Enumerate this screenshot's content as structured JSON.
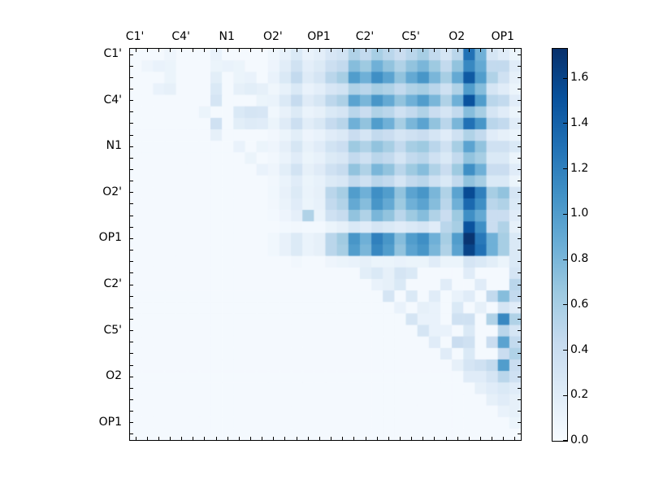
{
  "figure": {
    "background": "#ffffff",
    "text_color": "#000000"
  },
  "axis": {
    "labels": [
      "C1'",
      "C4'",
      "N1",
      "O2'",
      "OP1",
      "C2'",
      "C5'",
      "O2",
      "OP1"
    ],
    "label_cell_positions": [
      0,
      4,
      8,
      12,
      16,
      20,
      24,
      28,
      32
    ]
  },
  "colorbar": {
    "tick_labels": [
      "0.0",
      "0.2",
      "0.4",
      "0.6",
      "0.8",
      "1.0",
      "1.2",
      "1.4",
      "1.6"
    ],
    "tick_values": [
      0.0,
      0.2,
      0.4,
      0.6,
      0.8,
      1.0,
      1.2,
      1.4,
      1.6
    ],
    "vmin": 0.0,
    "vmax": 1.73
  },
  "chart_data": {
    "type": "heatmap",
    "title": "",
    "n": 34,
    "x_labels": [
      "C1'",
      "C4'",
      "N1",
      "O2'",
      "OP1",
      "C2'",
      "C5'",
      "O2",
      "OP1"
    ],
    "y_labels": [
      "C1'",
      "C4'",
      "N1",
      "O2'",
      "OP1",
      "C2'",
      "C5'",
      "O2",
      "OP1"
    ],
    "label_cell_positions": [
      0,
      4,
      8,
      12,
      16,
      20,
      24,
      28,
      32
    ],
    "colormap": "Blues",
    "colormap_anchors": [
      "#f7fbff",
      "#deebf7",
      "#c6dbef",
      "#9ecae1",
      "#6baed6",
      "#4292c6",
      "#2171b5",
      "#08519c",
      "#08306b"
    ],
    "vmin": 0.0,
    "vmax": 1.73,
    "grid": false,
    "legend_position": "right-colorbar",
    "matrix": [
      [
        0.03,
        0.03,
        0.03,
        0.08,
        0.03,
        0.03,
        0.03,
        0.12,
        0.03,
        0.03,
        0.03,
        0.03,
        0.07,
        0.14,
        0.25,
        0.12,
        0.17,
        0.28,
        0.33,
        0.55,
        0.45,
        0.6,
        0.5,
        0.4,
        0.5,
        0.6,
        0.45,
        0.3,
        0.5,
        1.3,
        0.85,
        0.3,
        0.2,
        0.1
      ],
      [
        0.03,
        0.08,
        0.12,
        0.1,
        0.03,
        0.03,
        0.03,
        0.1,
        0.12,
        0.1,
        0.03,
        0.03,
        0.09,
        0.19,
        0.34,
        0.17,
        0.23,
        0.38,
        0.45,
        0.75,
        0.65,
        0.85,
        0.7,
        0.55,
        0.7,
        0.8,
        0.65,
        0.45,
        0.7,
        1.15,
        0.9,
        0.45,
        0.45,
        0.2
      ],
      [
        0.03,
        0.03,
        0.03,
        0.1,
        0.03,
        0.03,
        0.03,
        0.18,
        0.03,
        0.1,
        0.12,
        0.03,
        0.12,
        0.25,
        0.45,
        0.22,
        0.3,
        0.5,
        0.6,
        1.0,
        0.85,
        1.1,
        0.95,
        0.7,
        0.9,
        1.05,
        0.8,
        0.6,
        0.9,
        1.45,
        1.0,
        0.55,
        0.35,
        0.15
      ],
      [
        0.03,
        0.03,
        0.12,
        0.15,
        0.03,
        0.03,
        0.03,
        0.25,
        0.03,
        0.15,
        0.18,
        0.15,
        0.07,
        0.14,
        0.25,
        0.12,
        0.17,
        0.28,
        0.33,
        0.55,
        0.5,
        0.6,
        0.55,
        0.45,
        0.55,
        0.6,
        0.5,
        0.35,
        0.55,
        1.0,
        0.75,
        0.3,
        0.2,
        0.1
      ],
      [
        0.03,
        0.03,
        0.03,
        0.03,
        0.03,
        0.03,
        0.03,
        0.3,
        0.03,
        0.03,
        0.03,
        0.1,
        0.11,
        0.24,
        0.43,
        0.21,
        0.29,
        0.48,
        0.57,
        0.95,
        0.8,
        1.05,
        0.9,
        0.7,
        0.85,
        1.0,
        0.8,
        0.55,
        0.85,
        1.5,
        1.0,
        0.5,
        0.45,
        0.2
      ],
      [
        0.03,
        0.03,
        0.03,
        0.03,
        0.03,
        0.03,
        0.1,
        0.03,
        0.03,
        0.25,
        0.3,
        0.28,
        0.06,
        0.13,
        0.23,
        0.11,
        0.15,
        0.25,
        0.3,
        0.5,
        0.4,
        0.55,
        0.5,
        0.35,
        0.45,
        0.55,
        0.4,
        0.3,
        0.45,
        0.75,
        0.6,
        0.3,
        0.2,
        0.1
      ],
      [
        0.03,
        0.03,
        0.03,
        0.03,
        0.03,
        0.03,
        0.03,
        0.35,
        0.03,
        0.18,
        0.22,
        0.2,
        0.1,
        0.21,
        0.38,
        0.19,
        0.26,
        0.43,
        0.51,
        0.85,
        0.7,
        1.0,
        0.85,
        0.6,
        0.8,
        0.95,
        0.7,
        0.5,
        0.8,
        1.3,
        1.05,
        0.5,
        0.45,
        0.2
      ],
      [
        0.03,
        0.03,
        0.03,
        0.03,
        0.03,
        0.03,
        0.03,
        0.15,
        0.03,
        0.03,
        0.03,
        0.03,
        0.05,
        0.1,
        0.18,
        0.09,
        0.12,
        0.2,
        0.24,
        0.4,
        0.3,
        0.45,
        0.4,
        0.3,
        0.35,
        0.4,
        0.3,
        0.2,
        0.35,
        0.55,
        0.45,
        0.2,
        0.15,
        0.1
      ],
      [
        0.03,
        0.03,
        0.03,
        0.03,
        0.03,
        0.03,
        0.03,
        0.03,
        0.03,
        0.12,
        0.03,
        0.1,
        0.08,
        0.16,
        0.29,
        0.14,
        0.2,
        0.33,
        0.39,
        0.65,
        0.55,
        0.7,
        0.6,
        0.45,
        0.6,
        0.65,
        0.5,
        0.35,
        0.6,
        0.95,
        0.7,
        0.35,
        0.35,
        0.25
      ],
      [
        0.03,
        0.03,
        0.03,
        0.03,
        0.03,
        0.03,
        0.03,
        0.03,
        0.03,
        0.03,
        0.1,
        0.03,
        0.05,
        0.11,
        0.2,
        0.1,
        0.14,
        0.23,
        0.27,
        0.45,
        0.35,
        0.5,
        0.45,
        0.3,
        0.45,
        0.5,
        0.35,
        0.25,
        0.45,
        0.7,
        0.6,
        0.25,
        0.25,
        0.1
      ],
      [
        0.03,
        0.03,
        0.03,
        0.03,
        0.03,
        0.03,
        0.03,
        0.03,
        0.03,
        0.03,
        0.03,
        0.12,
        0.08,
        0.18,
        0.32,
        0.15,
        0.21,
        0.35,
        0.42,
        0.7,
        0.55,
        0.8,
        0.7,
        0.5,
        0.65,
        0.75,
        0.55,
        0.4,
        0.65,
        1.1,
        0.85,
        0.4,
        0.4,
        0.2
      ],
      [
        0.03,
        0.03,
        0.03,
        0.03,
        0.03,
        0.03,
        0.03,
        0.03,
        0.03,
        0.03,
        0.03,
        0.03,
        0.05,
        0.11,
        0.2,
        0.1,
        0.14,
        0.23,
        0.27,
        0.45,
        0.35,
        0.5,
        0.45,
        0.3,
        0.45,
        0.5,
        0.35,
        0.25,
        0.45,
        0.7,
        0.6,
        0.25,
        0.25,
        0.1
      ],
      [
        0.03,
        0.03,
        0.03,
        0.03,
        0.03,
        0.03,
        0.03,
        0.03,
        0.03,
        0.03,
        0.03,
        0.03,
        0.06,
        0.13,
        0.23,
        0.11,
        0.15,
        0.5,
        0.6,
        1.0,
        0.85,
        1.1,
        1.0,
        0.7,
        0.95,
        1.05,
        0.8,
        0.55,
        0.95,
        1.55,
        1.2,
        0.6,
        0.7,
        0.3
      ],
      [
        0.03,
        0.03,
        0.03,
        0.03,
        0.03,
        0.03,
        0.03,
        0.03,
        0.03,
        0.03,
        0.03,
        0.03,
        0.05,
        0.11,
        0.2,
        0.1,
        0.14,
        0.45,
        0.54,
        0.9,
        0.75,
        1.05,
        0.9,
        0.65,
        0.85,
        0.95,
        0.75,
        0.5,
        0.85,
        1.35,
        1.1,
        0.5,
        0.55,
        0.25
      ],
      [
        0.03,
        0.03,
        0.03,
        0.03,
        0.03,
        0.03,
        0.03,
        0.03,
        0.03,
        0.03,
        0.03,
        0.03,
        0.04,
        0.09,
        0.16,
        0.55,
        0.11,
        0.35,
        0.42,
        0.7,
        0.55,
        0.8,
        0.7,
        0.5,
        0.65,
        0.75,
        0.55,
        0.4,
        0.65,
        1.1,
        0.9,
        0.4,
        0.4,
        0.2
      ],
      [
        0.03,
        0.03,
        0.03,
        0.03,
        0.03,
        0.03,
        0.03,
        0.03,
        0.03,
        0.03,
        0.03,
        0.03,
        0.03,
        0.04,
        0.05,
        0.04,
        0.04,
        0.1,
        0.15,
        0.25,
        0.2,
        0.3,
        0.25,
        0.2,
        0.25,
        0.3,
        0.2,
        0.5,
        0.6,
        1.5,
        1.1,
        0.4,
        0.55,
        0.15
      ],
      [
        0.03,
        0.03,
        0.03,
        0.03,
        0.03,
        0.03,
        0.03,
        0.03,
        0.03,
        0.03,
        0.03,
        0.03,
        0.06,
        0.13,
        0.23,
        0.11,
        0.15,
        0.5,
        0.63,
        1.05,
        0.85,
        1.2,
        1.05,
        0.75,
        1.0,
        1.1,
        0.85,
        0.6,
        1.0,
        1.7,
        1.25,
        0.85,
        0.6,
        0.25
      ],
      [
        0.03,
        0.03,
        0.03,
        0.03,
        0.03,
        0.03,
        0.03,
        0.03,
        0.03,
        0.03,
        0.03,
        0.03,
        0.06,
        0.13,
        0.23,
        0.11,
        0.15,
        0.5,
        0.6,
        1.0,
        0.8,
        1.15,
        1.0,
        0.7,
        0.95,
        1.05,
        0.8,
        0.55,
        0.95,
        1.6,
        1.3,
        0.85,
        0.6,
        0.25
      ],
      [
        0.03,
        0.03,
        0.03,
        0.03,
        0.03,
        0.03,
        0.03,
        0.03,
        0.03,
        0.03,
        0.03,
        0.03,
        0.03,
        0.03,
        0.05,
        0.03,
        0.03,
        0.08,
        0.1,
        0.12,
        0.15,
        0.1,
        0.1,
        0.12,
        0.1,
        0.1,
        0.2,
        0.1,
        0.1,
        0.3,
        0.25,
        0.18,
        0.1,
        0.25
      ],
      [
        0.03,
        0.03,
        0.03,
        0.03,
        0.03,
        0.03,
        0.03,
        0.03,
        0.03,
        0.03,
        0.03,
        0.03,
        0.03,
        0.03,
        0.03,
        0.03,
        0.03,
        0.03,
        0.03,
        0.03,
        0.18,
        0.25,
        0.15,
        0.3,
        0.25,
        0.03,
        0.03,
        0.03,
        0.03,
        0.2,
        0.03,
        0.03,
        0.03,
        0.3
      ],
      [
        0.03,
        0.03,
        0.03,
        0.03,
        0.03,
        0.03,
        0.03,
        0.03,
        0.03,
        0.03,
        0.03,
        0.03,
        0.03,
        0.03,
        0.03,
        0.03,
        0.03,
        0.03,
        0.03,
        0.03,
        0.03,
        0.12,
        0.15,
        0.25,
        0.03,
        0.03,
        0.03,
        0.2,
        0.03,
        0.03,
        0.2,
        0.03,
        0.03,
        0.5
      ],
      [
        0.03,
        0.03,
        0.03,
        0.03,
        0.03,
        0.03,
        0.03,
        0.03,
        0.03,
        0.03,
        0.03,
        0.03,
        0.03,
        0.03,
        0.03,
        0.03,
        0.03,
        0.03,
        0.03,
        0.03,
        0.03,
        0.03,
        0.3,
        0.03,
        0.25,
        0.03,
        0.2,
        0.03,
        0.12,
        0.2,
        0.03,
        0.45,
        0.75,
        0.45
      ],
      [
        0.03,
        0.03,
        0.03,
        0.03,
        0.03,
        0.03,
        0.03,
        0.03,
        0.03,
        0.03,
        0.03,
        0.03,
        0.03,
        0.03,
        0.03,
        0.03,
        0.03,
        0.03,
        0.03,
        0.03,
        0.03,
        0.03,
        0.03,
        0.12,
        0.03,
        0.15,
        0.12,
        0.03,
        0.25,
        0.03,
        0.15,
        0.03,
        0.3,
        0.2
      ],
      [
        0.03,
        0.03,
        0.03,
        0.03,
        0.03,
        0.03,
        0.03,
        0.03,
        0.03,
        0.03,
        0.03,
        0.03,
        0.03,
        0.03,
        0.03,
        0.03,
        0.03,
        0.03,
        0.03,
        0.03,
        0.03,
        0.03,
        0.03,
        0.03,
        0.3,
        0.12,
        0.12,
        0.03,
        0.35,
        0.35,
        0.03,
        0.55,
        1.15,
        0.55
      ],
      [
        0.03,
        0.03,
        0.03,
        0.03,
        0.03,
        0.03,
        0.03,
        0.03,
        0.03,
        0.03,
        0.03,
        0.03,
        0.03,
        0.03,
        0.03,
        0.03,
        0.03,
        0.03,
        0.03,
        0.03,
        0.03,
        0.03,
        0.03,
        0.03,
        0.03,
        0.3,
        0.12,
        0.12,
        0.03,
        0.25,
        0.03,
        0.03,
        0.5,
        0.3
      ],
      [
        0.03,
        0.03,
        0.03,
        0.03,
        0.03,
        0.03,
        0.03,
        0.03,
        0.03,
        0.03,
        0.03,
        0.03,
        0.03,
        0.03,
        0.03,
        0.03,
        0.03,
        0.03,
        0.03,
        0.03,
        0.03,
        0.03,
        0.03,
        0.03,
        0.03,
        0.03,
        0.2,
        0.03,
        0.4,
        0.35,
        0.03,
        0.4,
        0.95,
        0.45
      ],
      [
        0.03,
        0.03,
        0.03,
        0.03,
        0.03,
        0.03,
        0.03,
        0.03,
        0.03,
        0.03,
        0.03,
        0.03,
        0.03,
        0.03,
        0.03,
        0.03,
        0.03,
        0.03,
        0.03,
        0.03,
        0.03,
        0.03,
        0.03,
        0.03,
        0.03,
        0.03,
        0.03,
        0.2,
        0.03,
        0.25,
        0.03,
        0.03,
        0.4,
        0.55
      ],
      [
        0.03,
        0.03,
        0.03,
        0.03,
        0.03,
        0.03,
        0.03,
        0.03,
        0.03,
        0.03,
        0.03,
        0.03,
        0.03,
        0.03,
        0.03,
        0.03,
        0.03,
        0.03,
        0.03,
        0.03,
        0.03,
        0.03,
        0.03,
        0.03,
        0.03,
        0.03,
        0.03,
        0.03,
        0.15,
        0.3,
        0.35,
        0.45,
        1.0,
        0.4
      ],
      [
        0.03,
        0.03,
        0.03,
        0.03,
        0.03,
        0.03,
        0.03,
        0.03,
        0.03,
        0.03,
        0.03,
        0.03,
        0.03,
        0.03,
        0.03,
        0.03,
        0.03,
        0.03,
        0.03,
        0.03,
        0.03,
        0.03,
        0.03,
        0.03,
        0.03,
        0.03,
        0.03,
        0.03,
        0.03,
        0.2,
        0.2,
        0.3,
        0.5,
        0.35
      ],
      [
        0.03,
        0.03,
        0.03,
        0.03,
        0.03,
        0.03,
        0.03,
        0.03,
        0.03,
        0.03,
        0.03,
        0.03,
        0.03,
        0.03,
        0.03,
        0.03,
        0.03,
        0.03,
        0.03,
        0.03,
        0.03,
        0.03,
        0.03,
        0.03,
        0.03,
        0.03,
        0.03,
        0.03,
        0.03,
        0.03,
        0.15,
        0.2,
        0.25,
        0.2
      ],
      [
        0.03,
        0.03,
        0.03,
        0.03,
        0.03,
        0.03,
        0.03,
        0.03,
        0.03,
        0.03,
        0.03,
        0.03,
        0.03,
        0.03,
        0.03,
        0.03,
        0.03,
        0.03,
        0.03,
        0.03,
        0.03,
        0.03,
        0.03,
        0.03,
        0.03,
        0.03,
        0.03,
        0.03,
        0.03,
        0.03,
        0.03,
        0.15,
        0.2,
        0.15
      ],
      [
        0.03,
        0.03,
        0.03,
        0.03,
        0.03,
        0.03,
        0.03,
        0.03,
        0.03,
        0.03,
        0.03,
        0.03,
        0.03,
        0.03,
        0.03,
        0.03,
        0.03,
        0.03,
        0.03,
        0.03,
        0.03,
        0.03,
        0.03,
        0.03,
        0.03,
        0.03,
        0.03,
        0.03,
        0.03,
        0.03,
        0.03,
        0.03,
        0.12,
        0.15
      ],
      [
        0.03,
        0.03,
        0.03,
        0.03,
        0.03,
        0.03,
        0.03,
        0.03,
        0.03,
        0.03,
        0.03,
        0.03,
        0.03,
        0.03,
        0.03,
        0.03,
        0.03,
        0.03,
        0.03,
        0.03,
        0.03,
        0.03,
        0.03,
        0.03,
        0.03,
        0.03,
        0.03,
        0.03,
        0.03,
        0.03,
        0.03,
        0.03,
        0.03,
        0.1
      ],
      [
        0.03,
        0.03,
        0.03,
        0.03,
        0.03,
        0.03,
        0.03,
        0.03,
        0.03,
        0.03,
        0.03,
        0.03,
        0.03,
        0.03,
        0.03,
        0.03,
        0.03,
        0.03,
        0.03,
        0.03,
        0.03,
        0.03,
        0.03,
        0.03,
        0.03,
        0.03,
        0.03,
        0.03,
        0.03,
        0.03,
        0.03,
        0.03,
        0.03,
        0.03
      ]
    ]
  }
}
